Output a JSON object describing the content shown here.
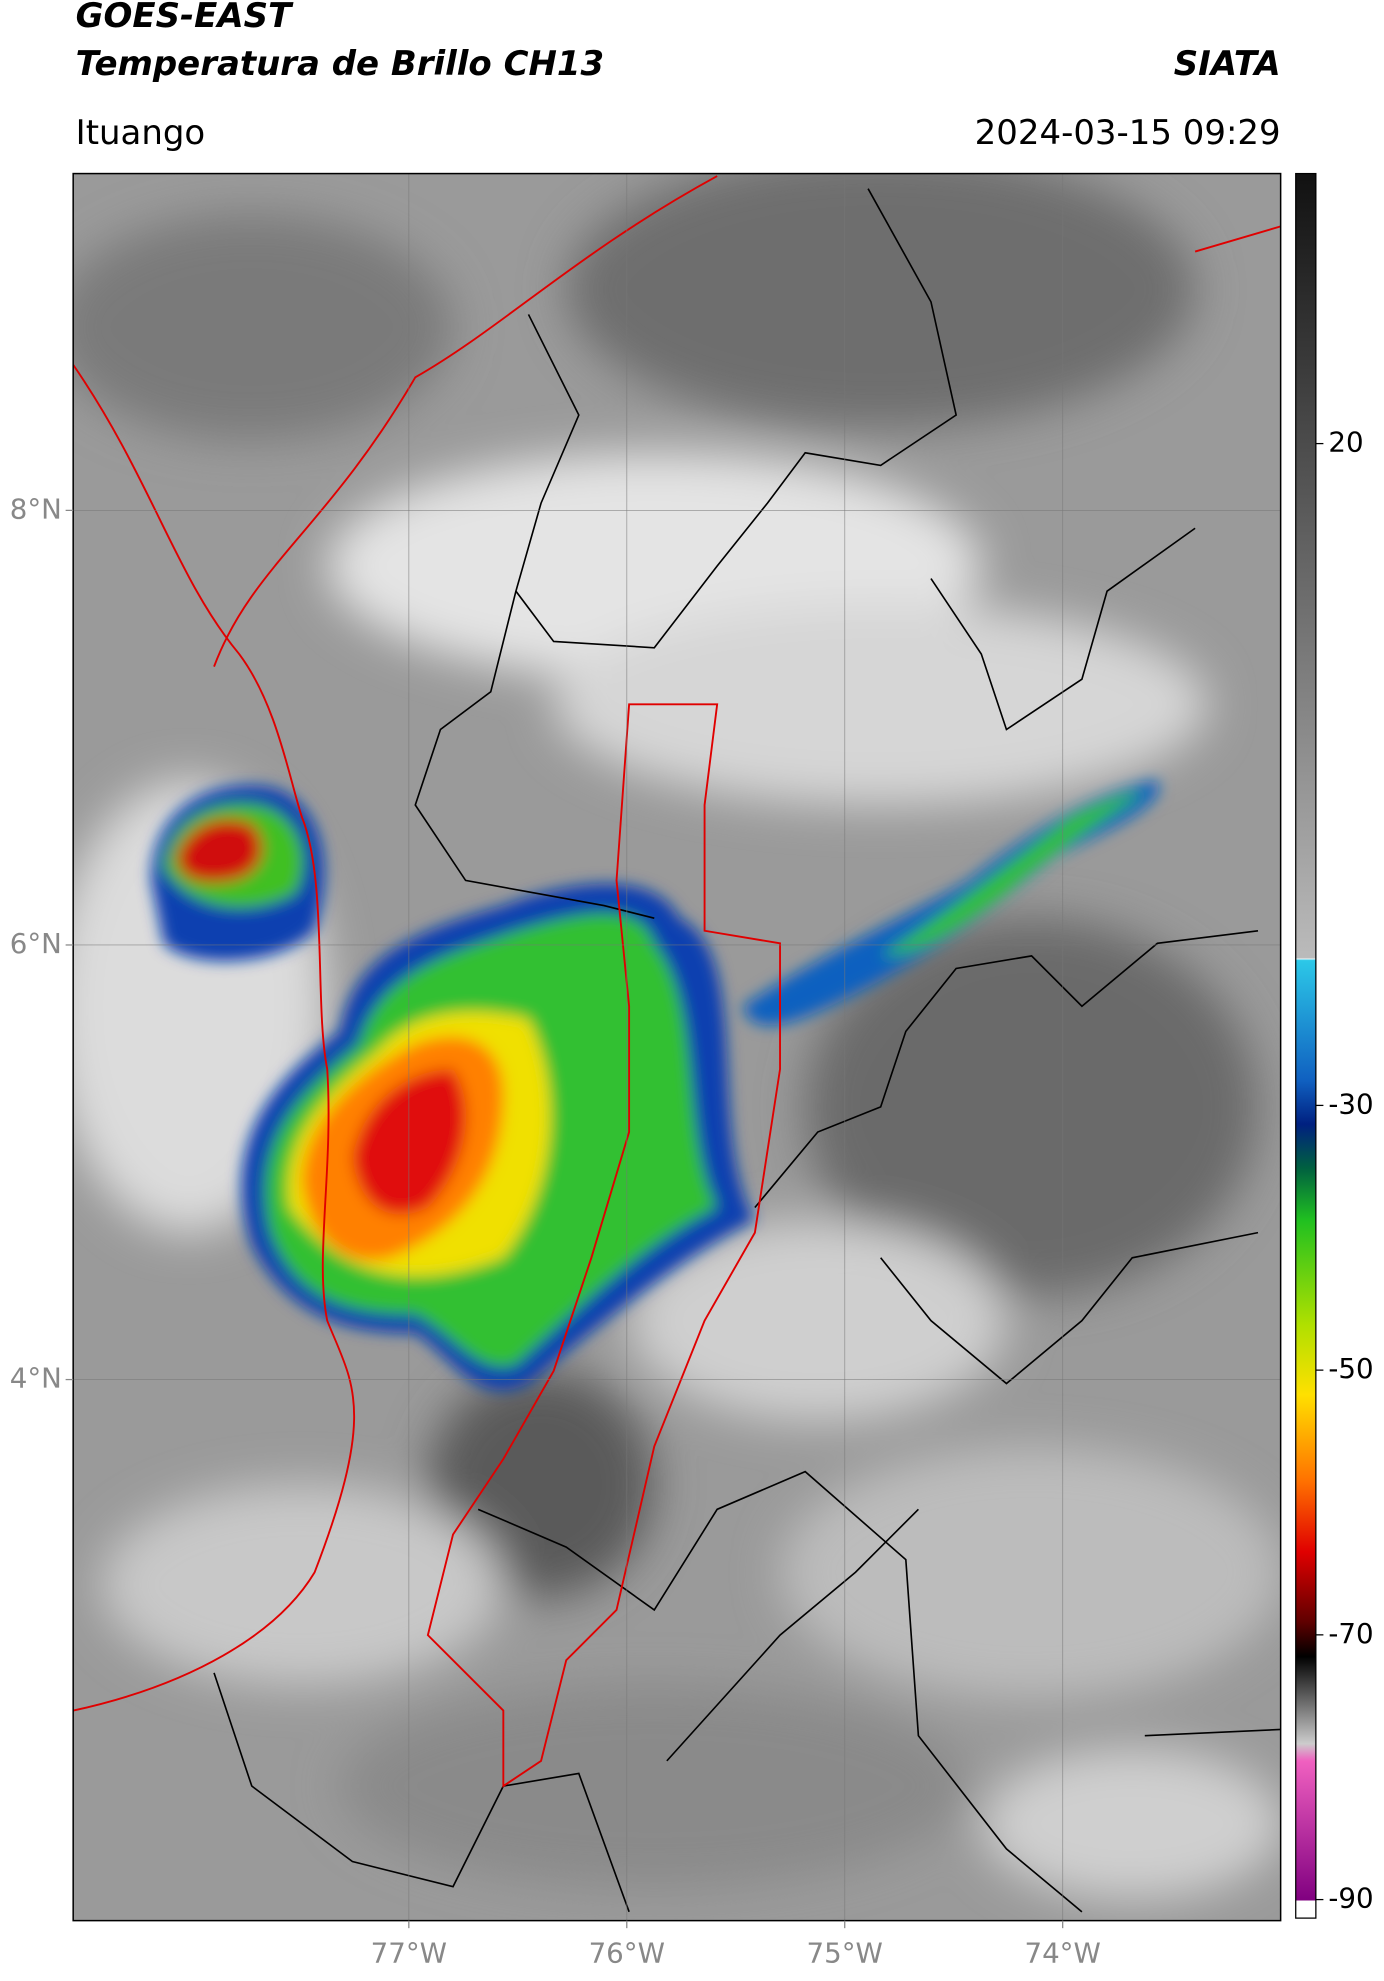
{
  "header": {
    "title": "GOES-EAST",
    "subtitle": "Temperatura de Brillo CH13",
    "source": "SIATA",
    "location": "Ituango",
    "datetime": "2024-03-15 09:29"
  },
  "map": {
    "xlim": [
      -78.54,
      -73.0
    ],
    "ylim": [
      1.51,
      9.55
    ],
    "xticks": [
      {
        "value": -77,
        "label": "77°W"
      },
      {
        "value": -76,
        "label": "76°W"
      },
      {
        "value": -75,
        "label": "75°W"
      },
      {
        "value": -74,
        "label": "74°W"
      }
    ],
    "yticks": [
      {
        "value": 8,
        "label": "8°N"
      },
      {
        "value": 6,
        "label": "6°N"
      },
      {
        "value": 4,
        "label": "4°N"
      }
    ],
    "grid": true
  },
  "colorbar": {
    "lim": [
      -91.4,
      40.4
    ],
    "ticks": [
      20,
      -30,
      -50,
      -70,
      -90
    ]
  }
}
